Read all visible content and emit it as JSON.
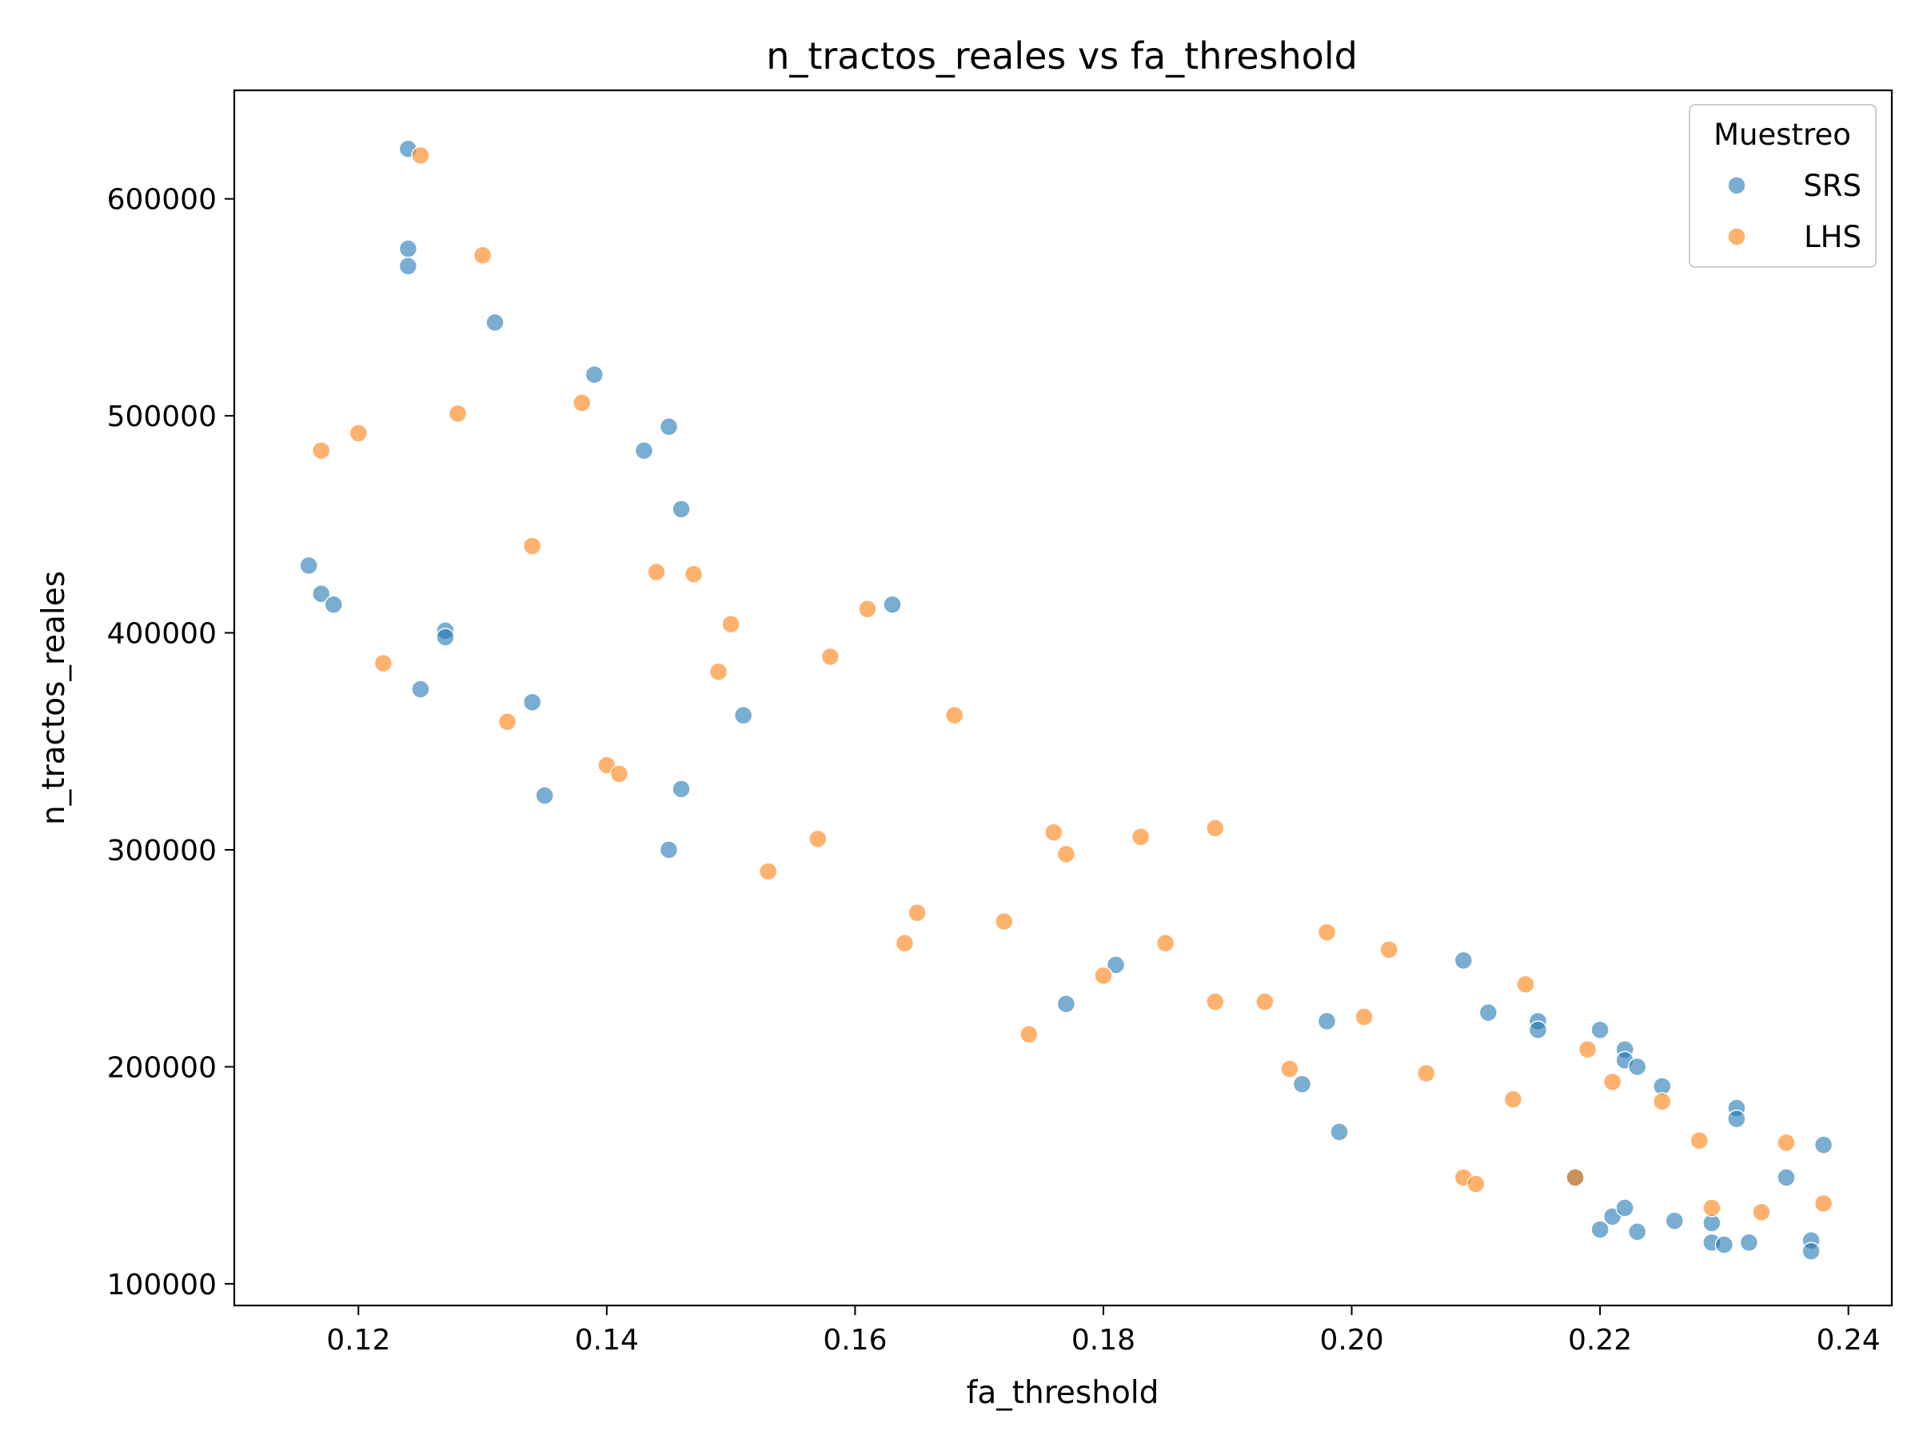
{
  "chart_data": {
    "type": "scatter",
    "title": "n_tractos_reales vs fa_threshold",
    "xlabel": "fa_threshold",
    "ylabel": "n_tractos_reales",
    "xlim": [
      0.11,
      0.2435
    ],
    "ylim": [
      90000,
      650000
    ],
    "xticks": [
      0.12,
      0.14,
      0.16,
      0.18,
      0.2,
      0.22,
      0.24
    ],
    "xtick_labels": [
      "0.12",
      "0.14",
      "0.16",
      "0.18",
      "0.20",
      "0.22",
      "0.24"
    ],
    "yticks": [
      100000,
      200000,
      300000,
      400000,
      500000,
      600000
    ],
    "ytick_labels": [
      "100000",
      "200000",
      "300000",
      "400000",
      "500000",
      "600000"
    ],
    "grid": false,
    "legend": {
      "title": "Muestreo",
      "placement": "top-right"
    },
    "series": [
      {
        "name": "SRS",
        "color": "#1f77b4",
        "points": [
          [
            0.116,
            431000
          ],
          [
            0.117,
            418000
          ],
          [
            0.118,
            413000
          ],
          [
            0.124,
            623000
          ],
          [
            0.124,
            577000
          ],
          [
            0.124,
            569000
          ],
          [
            0.125,
            374000
          ],
          [
            0.127,
            401000
          ],
          [
            0.127,
            398000
          ],
          [
            0.131,
            543000
          ],
          [
            0.134,
            368000
          ],
          [
            0.135,
            325000
          ],
          [
            0.139,
            519000
          ],
          [
            0.143,
            484000
          ],
          [
            0.145,
            495000
          ],
          [
            0.145,
            300000
          ],
          [
            0.146,
            457000
          ],
          [
            0.146,
            328000
          ],
          [
            0.151,
            362000
          ],
          [
            0.163,
            413000
          ],
          [
            0.177,
            229000
          ],
          [
            0.181,
            247000
          ],
          [
            0.196,
            192000
          ],
          [
            0.198,
            221000
          ],
          [
            0.199,
            170000
          ],
          [
            0.209,
            249000
          ],
          [
            0.211,
            225000
          ],
          [
            0.215,
            221000
          ],
          [
            0.215,
            217000
          ],
          [
            0.218,
            149000
          ],
          [
            0.22,
            217000
          ],
          [
            0.22,
            125000
          ],
          [
            0.221,
            131000
          ],
          [
            0.222,
            208000
          ],
          [
            0.222,
            203000
          ],
          [
            0.222,
            135000
          ],
          [
            0.223,
            200000
          ],
          [
            0.223,
            124000
          ],
          [
            0.225,
            191000
          ],
          [
            0.226,
            129000
          ],
          [
            0.229,
            128000
          ],
          [
            0.229,
            119000
          ],
          [
            0.23,
            118000
          ],
          [
            0.231,
            181000
          ],
          [
            0.231,
            176000
          ],
          [
            0.232,
            119000
          ],
          [
            0.235,
            149000
          ],
          [
            0.237,
            120000
          ],
          [
            0.237,
            115000
          ],
          [
            0.238,
            164000
          ]
        ]
      },
      {
        "name": "LHS",
        "color": "#ff7f0e",
        "points": [
          [
            0.117,
            484000
          ],
          [
            0.12,
            492000
          ],
          [
            0.122,
            386000
          ],
          [
            0.125,
            620000
          ],
          [
            0.128,
            501000
          ],
          [
            0.13,
            574000
          ],
          [
            0.132,
            359000
          ],
          [
            0.134,
            440000
          ],
          [
            0.138,
            506000
          ],
          [
            0.14,
            339000
          ],
          [
            0.141,
            335000
          ],
          [
            0.144,
            428000
          ],
          [
            0.147,
            427000
          ],
          [
            0.149,
            382000
          ],
          [
            0.15,
            404000
          ],
          [
            0.153,
            290000
          ],
          [
            0.157,
            305000
          ],
          [
            0.158,
            389000
          ],
          [
            0.161,
            411000
          ],
          [
            0.164,
            257000
          ],
          [
            0.165,
            271000
          ],
          [
            0.168,
            362000
          ],
          [
            0.172,
            267000
          ],
          [
            0.174,
            215000
          ],
          [
            0.176,
            308000
          ],
          [
            0.177,
            298000
          ],
          [
            0.18,
            242000
          ],
          [
            0.183,
            306000
          ],
          [
            0.185,
            257000
          ],
          [
            0.189,
            310000
          ],
          [
            0.189,
            230000
          ],
          [
            0.193,
            230000
          ],
          [
            0.195,
            199000
          ],
          [
            0.198,
            262000
          ],
          [
            0.201,
            223000
          ],
          [
            0.203,
            254000
          ],
          [
            0.206,
            197000
          ],
          [
            0.209,
            149000
          ],
          [
            0.21,
            146000
          ],
          [
            0.213,
            185000
          ],
          [
            0.214,
            238000
          ],
          [
            0.218,
            149000
          ],
          [
            0.219,
            208000
          ],
          [
            0.221,
            193000
          ],
          [
            0.225,
            184000
          ],
          [
            0.228,
            166000
          ],
          [
            0.229,
            135000
          ],
          [
            0.233,
            133000
          ],
          [
            0.235,
            165000
          ],
          [
            0.238,
            137000
          ]
        ]
      }
    ]
  }
}
